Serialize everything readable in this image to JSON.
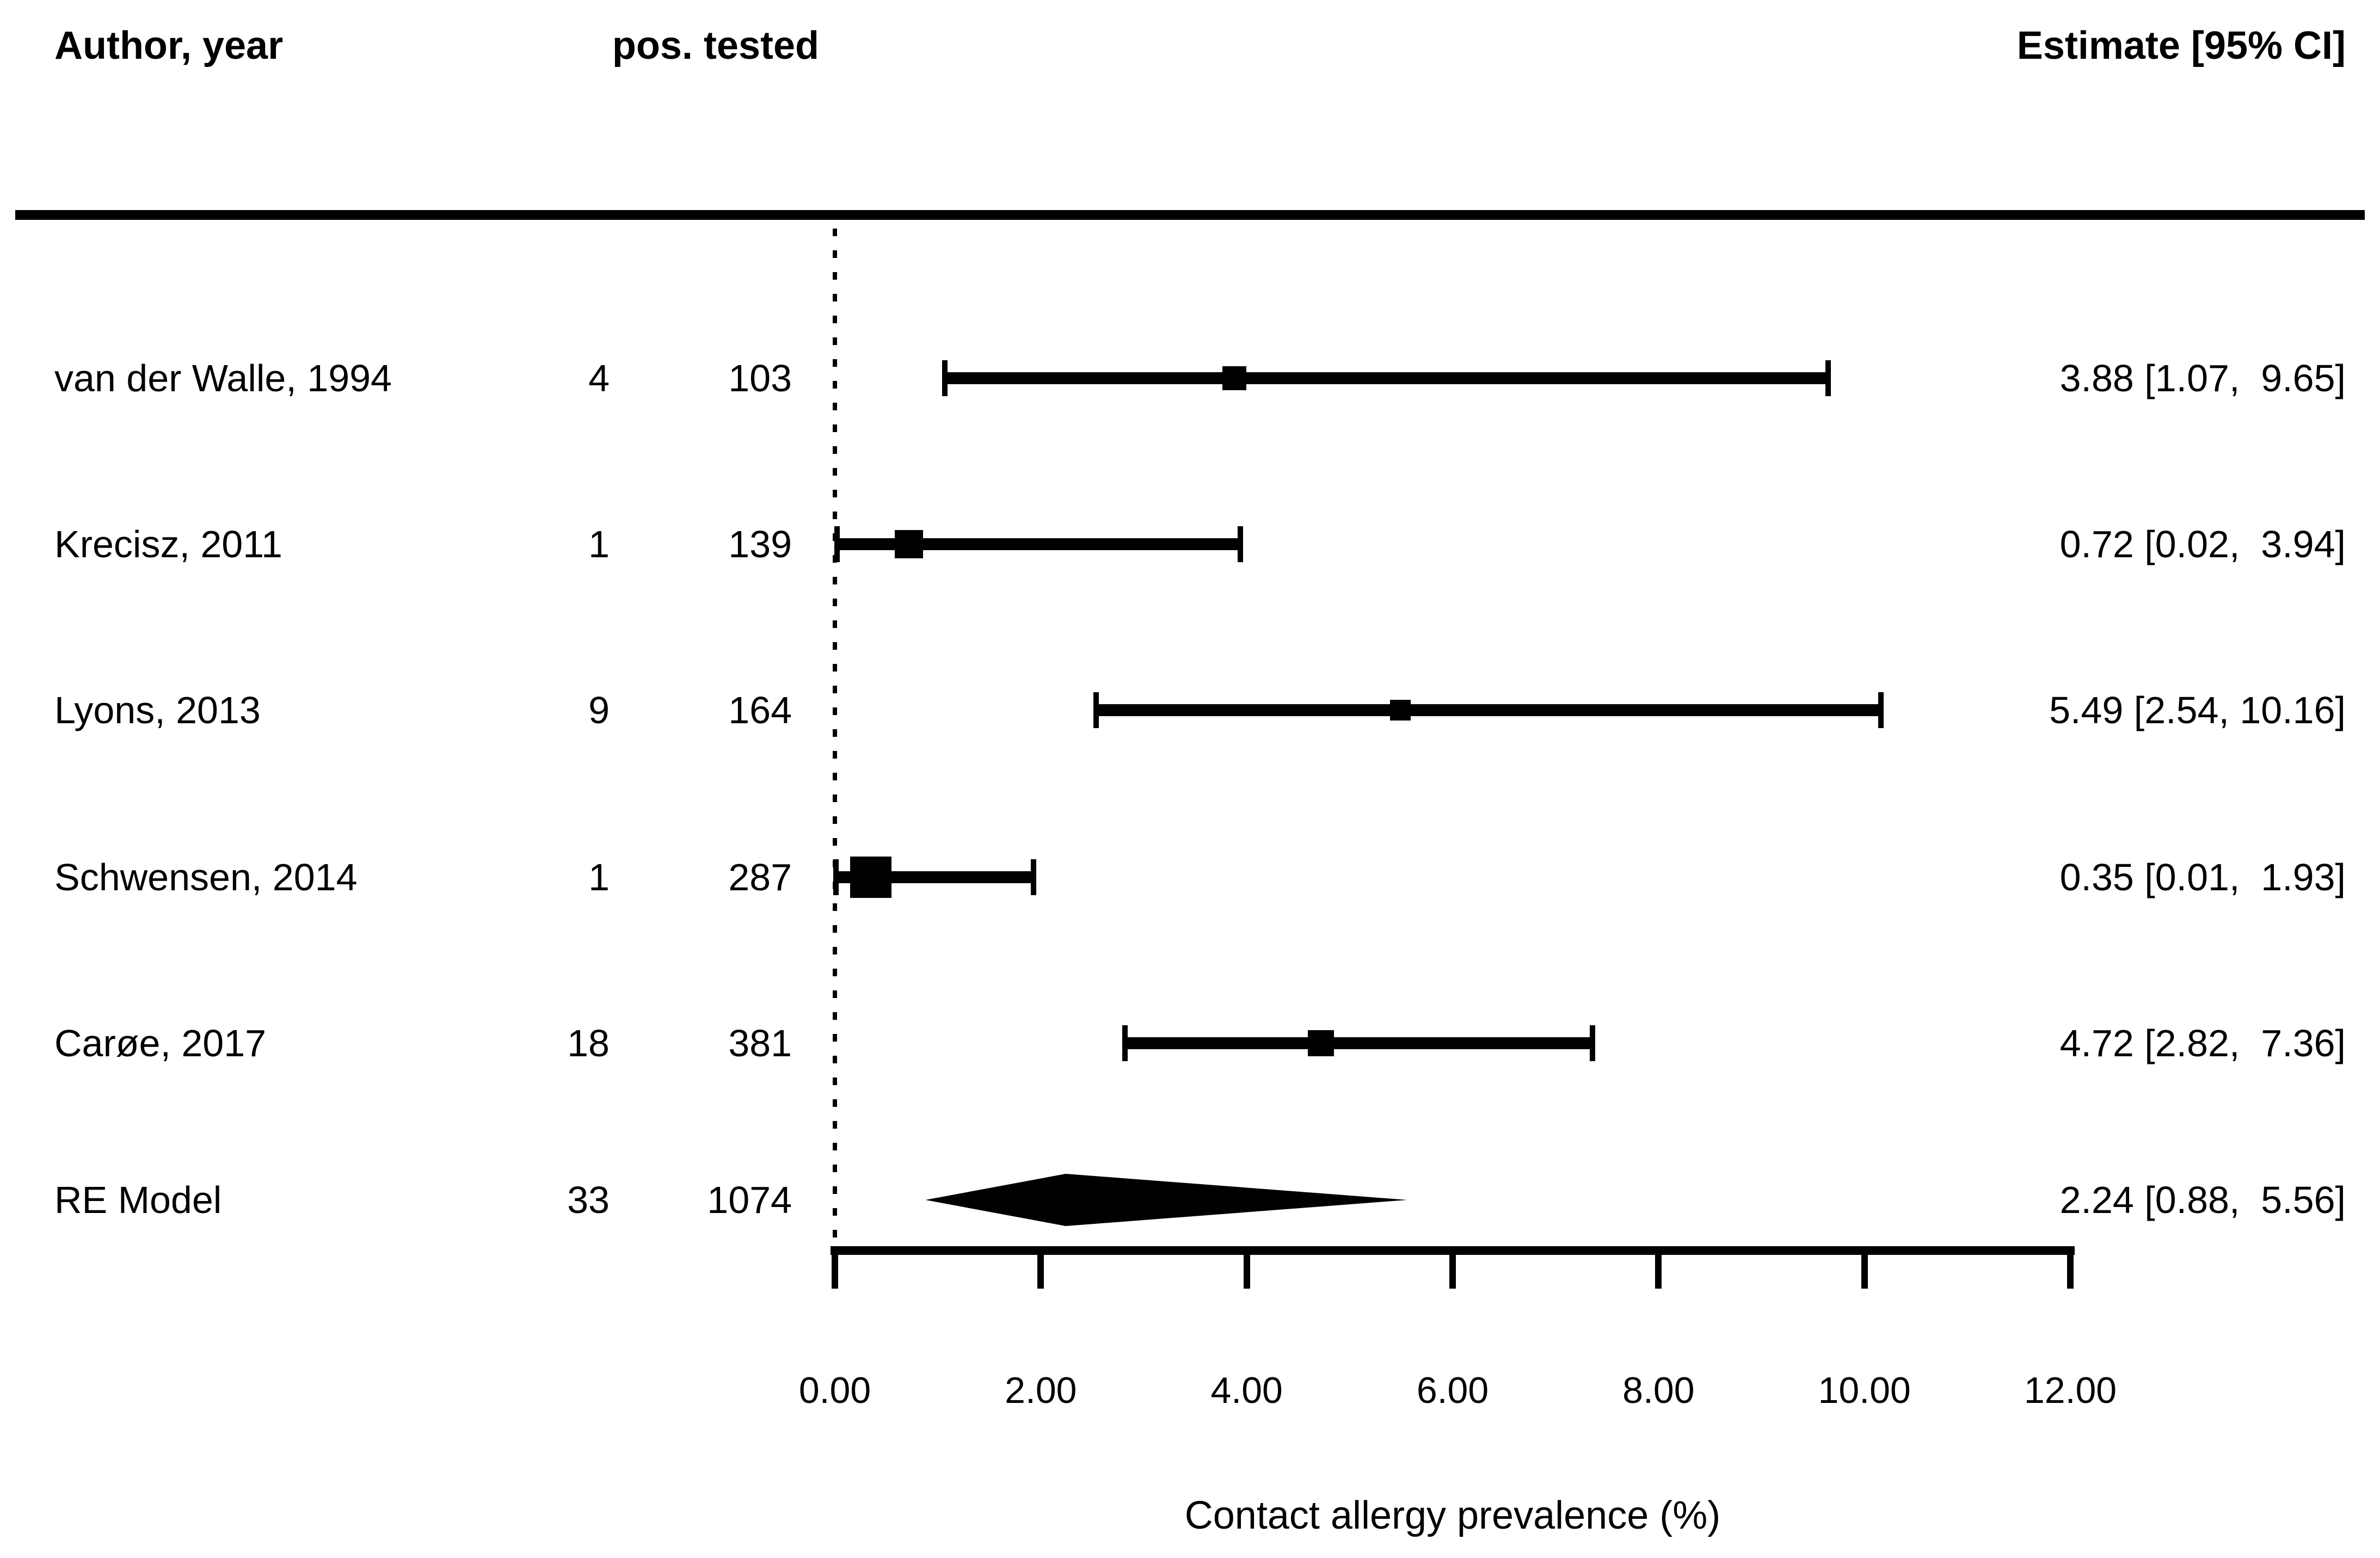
{
  "header": {
    "author_col": "Author, year",
    "count_col": "pos. tested",
    "estimate_col": "Estimate [95% CI]"
  },
  "chart_data": {
    "type": "scatter",
    "subtype": "forest-plot",
    "title": "",
    "xlabel": "Contact allergy prevalence (%)",
    "ylabel": "",
    "xlim": [
      0,
      12
    ],
    "grid": false,
    "x_ticks": [
      "0.00",
      "2.00",
      "4.00",
      "6.00",
      "8.00",
      "10.00",
      "12.00"
    ],
    "x_tick_values": [
      0,
      2,
      4,
      6,
      8,
      10,
      12
    ],
    "reference_line_x": 0,
    "studies": [
      {
        "author": "van der Walle, 1994",
        "pos": "4",
        "tested": "103",
        "estimate": 3.88,
        "ci_lower": 1.07,
        "ci_upper": 9.65,
        "label": "3.88 [1.07,  9.65]",
        "marker_size": 44
      },
      {
        "author": "Krecisz, 2011",
        "pos": "1",
        "tested": "139",
        "estimate": 0.72,
        "ci_lower": 0.02,
        "ci_upper": 3.94,
        "label": "0.72 [0.02,  3.94]",
        "marker_size": 52
      },
      {
        "author": "Lyons, 2013",
        "pos": "9",
        "tested": "164",
        "estimate": 5.49,
        "ci_lower": 2.54,
        "ci_upper": 10.16,
        "label": "5.49 [2.54, 10.16]",
        "marker_size": 38
      },
      {
        "author": "Schwensen, 2014",
        "pos": "1",
        "tested": "287",
        "estimate": 0.35,
        "ci_lower": 0.01,
        "ci_upper": 1.93,
        "label": "0.35 [0.01,  1.93]",
        "marker_size": 76
      },
      {
        "author": "Carøe, 2017",
        "pos": "18",
        "tested": "381",
        "estimate": 4.72,
        "ci_lower": 2.82,
        "ci_upper": 7.36,
        "label": "4.72 [2.82,  7.36]",
        "marker_size": 48
      }
    ],
    "summary": {
      "author": "RE Model",
      "pos": "33",
      "tested": "1074",
      "estimate": 2.24,
      "ci_lower": 0.88,
      "ci_upper": 5.56,
      "label": "2.24 [0.88,  5.56]"
    }
  },
  "colors": {
    "foreground": "#000000",
    "background": "#ffffff"
  }
}
